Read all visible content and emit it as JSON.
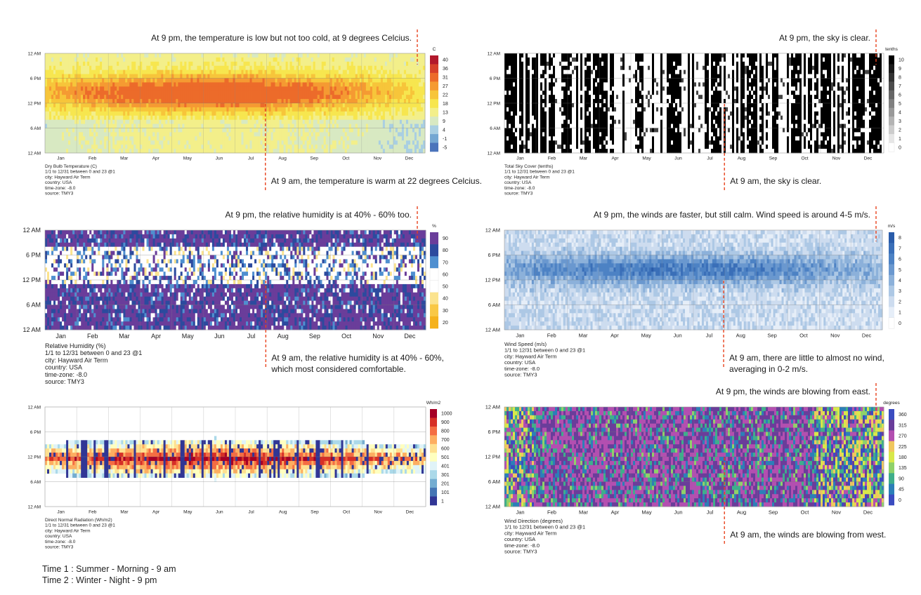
{
  "footer": {
    "line1": "Time 1 : Summer - Morning - 9 am",
    "line2": "Time 2 : Winter - Night - 9 pm"
  },
  "chart_data": [
    {
      "id": "temp",
      "type": "heatmap",
      "title": "Dry Bulb Temperature (C)",
      "meta": [
        "1/1 to 12/31 between 0 and 23 @1",
        "city: Hayward Air Term",
        "country: USA",
        "time-zone: -8.0",
        "source: TMY3"
      ],
      "y_ticks": [
        "12 AM",
        "6 PM",
        "12 PM",
        "6 AM",
        "12 AM"
      ],
      "x_ticks": [
        "Jan",
        "Feb",
        "Mar",
        "Apr",
        "May",
        "Jun",
        "Jul",
        "Aug",
        "Sep",
        "Oct",
        "Nov",
        "Dec"
      ],
      "legend_unit": "C",
      "legend_labels": [
        "40",
        "36",
        "31",
        "27",
        "22",
        "18",
        "13",
        "9",
        "4",
        "-1",
        "-5"
      ],
      "legend_colors": [
        "#b2182b",
        "#d6402a",
        "#ec6b2a",
        "#f59a32",
        "#f7c53a",
        "#f7e64f",
        "#f3ef8a",
        "#d8e9c2",
        "#a9cfe2",
        "#74a7d2",
        "#4a74bb"
      ],
      "annotation_top": "At 9 pm, the temperature is low but not too cold, at 9 degrees Celcius.",
      "annotation_bottom": [
        "At 9 am, the temperature is warm at 22 degrees Celcius."
      ]
    },
    {
      "id": "sky",
      "type": "heatmap",
      "title": "Total Sky Cover (tenths)",
      "meta": [
        "1/1 to 12/31 between 0 and 23 @1",
        "city: Hayward Air Term",
        "country: USA",
        "time-zone: -8.0",
        "source: TMY3"
      ],
      "y_ticks": [
        "12 AM",
        "6 PM",
        "12 PM",
        "6 AM",
        "12 AM"
      ],
      "x_ticks": [
        "Jan",
        "Feb",
        "Mar",
        "Apr",
        "May",
        "Jun",
        "Jul",
        "Aug",
        "Sep",
        "Oct",
        "Nov",
        "Dec"
      ],
      "legend_unit": "tenths",
      "legend_labels": [
        "10",
        "9",
        "8",
        "7",
        "6",
        "5",
        "4",
        "3",
        "2",
        "1",
        "0"
      ],
      "legend_colors": [
        "#000000",
        "#1a1a1a",
        "#333333",
        "#4d4d4d",
        "#666666",
        "#808080",
        "#999999",
        "#b3b3b3",
        "#cccccc",
        "#e6e6e6",
        "#ffffff"
      ],
      "annotation_top": "At 9 pm, the sky is clear.",
      "annotation_bottom": [
        "At 9 am, the sky is clear."
      ]
    },
    {
      "id": "rh",
      "type": "heatmap",
      "title": "Relative Humidity (%)",
      "meta": [
        "1/1 to 12/31 between 0 and 23 @1",
        "city: Hayward Air Term",
        "country: USA",
        "time-zone: -8.0",
        "source: TMY3"
      ],
      "y_ticks": [
        "12 AM",
        "6 PM",
        "12 PM",
        "6 AM",
        "12 AM"
      ],
      "x_ticks": [
        "Jan",
        "Feb",
        "Mar",
        "Apr",
        "May",
        "Jun",
        "Jul",
        "Aug",
        "Sep",
        "Oct",
        "Nov",
        "Dec"
      ],
      "legend_unit": "%",
      "legend_labels": [
        "90",
        "80",
        "70",
        "60",
        "50",
        "40",
        "30",
        "20"
      ],
      "legend_colors": [
        "#6a3d9a",
        "#2c4a9e",
        "#4f8fd0",
        "#ffffff",
        "#ffffff",
        "#fbe38e",
        "#f9c845",
        "#f5b21c"
      ],
      "annotation_top": "At 9 pm, the relative humidity is at 40% - 60% too.",
      "annotation_bottom": [
        "At 9 am, the relative humidity is at 40% - 60%,",
        "which most considered comfortable."
      ]
    },
    {
      "id": "wind",
      "type": "heatmap",
      "title": "Wind Speed (m/s)",
      "meta": [
        "1/1 to 12/31 between 0 and 23 @1",
        "city: Hayward Air Term",
        "country: USA",
        "time-zone: -8.0",
        "source: TMY3"
      ],
      "y_ticks": [
        "12 AM",
        "6 PM",
        "12 PM",
        "6 AM",
        "12 AM"
      ],
      "x_ticks": [
        "Jan",
        "Feb",
        "Mar",
        "Apr",
        "May",
        "Jun",
        "Jul",
        "Aug",
        "Sep",
        "Oct",
        "Nov",
        "Dec"
      ],
      "legend_unit": "m/s",
      "legend_labels": [
        "8",
        "7",
        "6",
        "5",
        "4",
        "3",
        "2",
        "1",
        "0"
      ],
      "legend_colors": [
        "#2a5caa",
        "#3a6fb8",
        "#4d82c4",
        "#6a98cf",
        "#8cb1da",
        "#adc8e5",
        "#cddcef",
        "#e6eef8",
        "#ffffff"
      ],
      "annotation_top": "At 9 pm, the winds are faster, but still calm. Wind speed is around 4-5 m/s.",
      "annotation_bottom": [
        "At 9 am, there are little to almost no wind,",
        "averaging in 0-2 m/s."
      ]
    },
    {
      "id": "dnr",
      "type": "heatmap",
      "title": "Direct Normal Radiation (Wh/m2)",
      "meta": [
        "1/1 to 12/31 between 0 and 23 @1",
        "city: Hayward Air Term",
        "country: USA",
        "time-zone: -8.0",
        "source: TMY3"
      ],
      "y_ticks": [
        "12 AM",
        "6 PM",
        "12 PM",
        "6 AM",
        "12 AM"
      ],
      "x_ticks": [
        "Jan",
        "Feb",
        "Mar",
        "Apr",
        "May",
        "Jun",
        "Jul",
        "Aug",
        "Sep",
        "Oct",
        "Nov",
        "Dec"
      ],
      "legend_unit": "Wh/m2",
      "legend_labels": [
        "1000",
        "900",
        "800",
        "700",
        "600",
        "501",
        "401",
        "301",
        "201",
        "101",
        "1"
      ],
      "legend_colors": [
        "#a50026",
        "#d62f27",
        "#f46d43",
        "#fdae61",
        "#fee090",
        "#ffffbf",
        "#e0f3f8",
        "#abd9e9",
        "#74add1",
        "#4575b4",
        "#313695"
      ],
      "annotation_top": "",
      "annotation_bottom": []
    },
    {
      "id": "wdir",
      "type": "heatmap",
      "title": "Wind Direction (degrees)",
      "meta": [
        "1/1 to 12/31 between 0 and 23 @1",
        "city: Hayward Air Term",
        "country: USA",
        "time-zone: -8.0",
        "source: TMY3"
      ],
      "y_ticks": [
        "12 AM",
        "6 PM",
        "12 PM",
        "6 AM",
        "12 AM"
      ],
      "x_ticks": [
        "Jan",
        "Feb",
        "Mar",
        "Apr",
        "May",
        "Jun",
        "Jul",
        "Aug",
        "Sep",
        "Oct",
        "Nov",
        "Dec"
      ],
      "legend_unit": "degrees",
      "legend_labels": [
        "360",
        "315",
        "270",
        "225",
        "180",
        "135",
        "90",
        "45",
        "0"
      ],
      "legend_colors": [
        "#3b4cc0",
        "#6a3d9a",
        "#b34fb0",
        "#f0c75e",
        "#d8e84a",
        "#8fd16a",
        "#3fae8b",
        "#2c7fb8",
        "#3b4cc0"
      ],
      "annotation_top": "At 9 pm, the winds are blowing from east.",
      "annotation_bottom": [
        "At 9 am, the winds are blowing from west."
      ]
    }
  ]
}
